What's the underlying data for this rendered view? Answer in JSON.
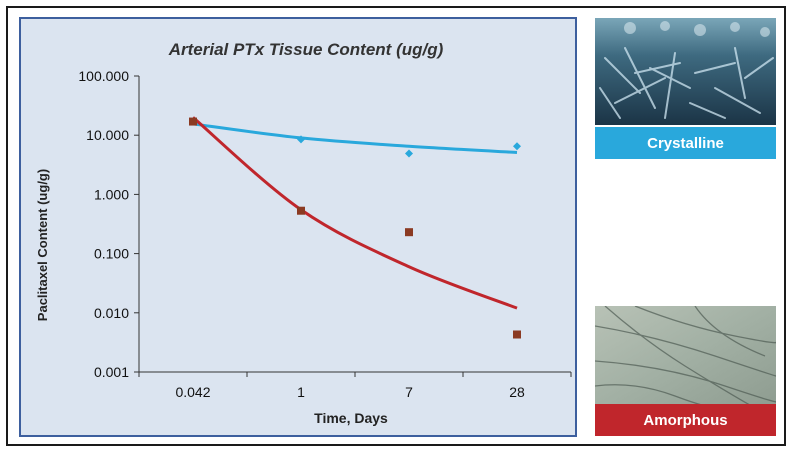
{
  "chart_data": {
    "type": "scatter",
    "title": "Arterial PTx Tissue Content (ug/g)",
    "xlabel": "Time, Days",
    "ylabel": "Paclitaxel Content (ug/g)",
    "x_scale": "categorical",
    "categories": [
      "0.042",
      "1",
      "7",
      "28"
    ],
    "y_scale": "log",
    "ylim": [
      0.001,
      100
    ],
    "y_ticks": [
      "100.000",
      "10.000",
      "1.000",
      "0.100",
      "0.010",
      "0.001"
    ],
    "grid": false,
    "series": [
      {
        "name": "Crystalline",
        "color": "#29a8dc",
        "marker": "diamond",
        "points": [
          17,
          8.5,
          4.9,
          6.5
        ],
        "trend_line": [
          15.5,
          9.0,
          6.5,
          5.1
        ]
      },
      {
        "name": "Amorphous",
        "color": "#c0262c",
        "marker_color": "#8b3a22",
        "marker": "square",
        "points": [
          17,
          0.53,
          0.23,
          0.0043
        ],
        "trend_line": [
          20,
          0.55,
          0.06,
          0.012
        ]
      }
    ]
  },
  "labels": {
    "crystalline": "Crystalline",
    "amorphous": "Amorphous"
  }
}
